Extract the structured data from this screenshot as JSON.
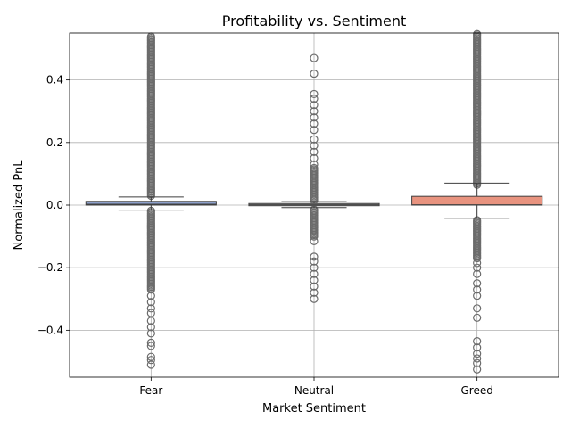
{
  "chart_data": {
    "type": "box",
    "title": "Profitability vs. Sentiment",
    "xlabel": "Market Sentiment",
    "ylabel": "Normalized PnL",
    "ylim": [
      -0.55,
      0.55
    ],
    "yticks": [
      -0.4,
      -0.2,
      0.0,
      0.2,
      0.4
    ],
    "ytick_labels": [
      "−0.4",
      "−0.2",
      "0.0",
      "0.2",
      "0.4"
    ],
    "grid": true,
    "categories": [
      "Fear",
      "Neutral",
      "Greed"
    ],
    "colors": [
      "#8da0cb",
      "#bdbdbd",
      "#e8937f"
    ],
    "boxes": [
      {
        "name": "Fear",
        "q1": 0.0,
        "median": 0.003,
        "q3": 0.012,
        "whisker_low": -0.016,
        "whisker_high": 0.026,
        "fliers_dense": [
          [
            0.03,
            0.54
          ],
          [
            -0.27,
            -0.015
          ]
        ],
        "fliers": [
          -0.29,
          -0.31,
          -0.33,
          -0.345,
          -0.37,
          -0.39,
          -0.41,
          -0.44,
          -0.45,
          -0.485,
          -0.495,
          -0.51
        ]
      },
      {
        "name": "Neutral",
        "q1": -0.002,
        "median": 0.001,
        "q3": 0.005,
        "whisker_low": -0.008,
        "whisker_high": 0.011,
        "fliers_dense": [
          [
            0.015,
            0.12
          ],
          [
            -0.1,
            -0.012
          ]
        ],
        "fliers": [
          0.13,
          0.15,
          0.17,
          0.19,
          0.21,
          0.24,
          0.26,
          0.28,
          0.3,
          0.32,
          0.34,
          0.355,
          0.42,
          0.47,
          -0.115,
          -0.165,
          -0.18,
          -0.2,
          -0.22,
          -0.24,
          -0.26,
          -0.28,
          -0.3
        ]
      },
      {
        "name": "Greed",
        "q1": 0.0,
        "median": 0.001,
        "q3": 0.028,
        "whisker_low": -0.042,
        "whisker_high": 0.07,
        "fliers_dense": [
          [
            0.065,
            0.55
          ],
          [
            -0.17,
            -0.045
          ]
        ],
        "fliers": [
          -0.185,
          -0.2,
          -0.22,
          -0.25,
          -0.27,
          -0.29,
          -0.33,
          -0.36,
          -0.435,
          -0.455,
          -0.475,
          -0.49,
          -0.505,
          -0.525
        ]
      }
    ]
  }
}
